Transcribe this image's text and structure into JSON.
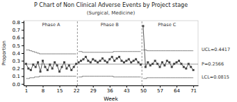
{
  "chart_data": {
    "type": "line",
    "title": "P Chart of Non Clinical Adverse Events by Project stage",
    "subtitle": "(Surgical, Medicine)",
    "xlabel": "Week",
    "ylabel": "Proportion",
    "xlim": [
      0,
      73
    ],
    "ylim": [
      -0.02,
      0.82
    ],
    "xticks": [
      1,
      8,
      15,
      22,
      29,
      36,
      43,
      50,
      57,
      64,
      71
    ],
    "yticks": [
      {
        "value": 0.0,
        "label": "0.0"
      },
      0.1,
      0.2,
      0.3,
      0.4,
      0.5,
      0.6,
      0.7,
      0.8
    ],
    "grid": false,
    "series": [
      {
        "type": "step",
        "color": "#666666",
        "line_style": "solid",
        "x": [
          1,
          2,
          3,
          4,
          5,
          6,
          7,
          8,
          9,
          10,
          11,
          12,
          13,
          14,
          15,
          16,
          17,
          18,
          19,
          20,
          21,
          22
        ],
        "values": [
          0.44,
          0.44,
          0.43,
          0.42,
          0.41,
          0.4,
          0.39,
          0.39,
          0.39,
          0.39,
          0.39,
          0.39,
          0.39,
          0.39,
          0.39,
          0.39,
          0.39,
          0.39,
          0.39,
          0.39,
          0.39,
          0.39
        ]
      },
      {
        "type": "step",
        "color": "#666666",
        "line_style": "solid",
        "x": [
          1,
          2,
          3,
          4,
          5,
          6,
          7,
          8,
          9,
          10,
          11,
          12,
          13,
          14,
          15,
          16,
          17,
          18,
          19,
          20,
          21,
          22
        ],
        "values": [
          0.07,
          0.07,
          0.08,
          0.08,
          0.09,
          0.09,
          0.1,
          0.1,
          0.1,
          0.1,
          0.1,
          0.1,
          0.1,
          0.1,
          0.1,
          0.1,
          0.1,
          0.1,
          0.1,
          0.1,
          0.1,
          0.1
        ]
      },
      {
        "type": "step",
        "color": "#666666",
        "line_style": "solid",
        "x": [
          23,
          24,
          25,
          26,
          27,
          28,
          29,
          30,
          31,
          32,
          33,
          34,
          35,
          36,
          37,
          38,
          39,
          40,
          41,
          42,
          43,
          44,
          45,
          46,
          47,
          48,
          49
        ],
        "values": [
          0.42,
          0.42,
          0.41,
          0.41,
          0.41,
          0.41,
          0.41,
          0.41,
          0.41,
          0.41,
          0.41,
          0.41,
          0.41,
          0.41,
          0.41,
          0.42,
          0.42,
          0.42,
          0.42,
          0.42,
          0.42,
          0.42,
          0.42,
          0.42,
          0.42,
          0.42,
          0.42
        ]
      },
      {
        "type": "step",
        "color": "#666666",
        "line_style": "solid",
        "x": [
          23,
          24,
          25,
          26,
          27,
          28,
          29,
          30,
          31,
          32,
          33,
          34,
          35,
          36,
          37,
          38,
          39,
          40,
          41,
          42,
          43,
          44,
          45,
          46,
          47,
          48,
          49
        ],
        "values": [
          0.09,
          0.09,
          0.1,
          0.1,
          0.1,
          0.1,
          0.1,
          0.1,
          0.1,
          0.1,
          0.1,
          0.1,
          0.1,
          0.1,
          0.1,
          0.09,
          0.09,
          0.09,
          0.09,
          0.09,
          0.09,
          0.09,
          0.09,
          0.09,
          0.09,
          0.09,
          0.09
        ]
      },
      {
        "type": "step",
        "color": "#666666",
        "line_style": "solid",
        "x": [
          50,
          51,
          52,
          53,
          54,
          55,
          56,
          57,
          58,
          59,
          60,
          61,
          62,
          63,
          64,
          65,
          66,
          67,
          68,
          69,
          70,
          71
        ],
        "values": [
          0.44,
          0.44,
          0.43,
          0.43,
          0.43,
          0.43,
          0.43,
          0.43,
          0.43,
          0.43,
          0.43,
          0.43,
          0.43,
          0.43,
          0.43,
          0.43,
          0.43,
          0.43,
          0.43,
          0.43,
          0.43,
          0.43
        ]
      },
      {
        "type": "step",
        "color": "#666666",
        "line_style": "solid",
        "x": [
          50,
          51,
          52,
          53,
          54,
          55,
          56,
          57,
          58,
          59,
          60,
          61,
          62,
          63,
          64,
          65,
          66,
          67,
          68,
          69,
          70,
          71
        ],
        "values": [
          0.07,
          0.07,
          0.08,
          0.08,
          0.08,
          0.08,
          0.08,
          0.08,
          0.08,
          0.08,
          0.08,
          0.08,
          0.08,
          0.08,
          0.08,
          0.08,
          0.08,
          0.08,
          0.08,
          0.08,
          0.08,
          0.08
        ]
      },
      {
        "type": "line",
        "color": "#444444",
        "marker": "square",
        "line_style": "solid",
        "x": [
          1,
          2,
          3,
          4,
          5,
          6,
          7,
          8,
          9,
          10,
          11,
          12,
          13,
          14,
          15,
          16,
          17,
          18,
          19,
          20,
          21,
          22
        ],
        "values": [
          0.26,
          0.2,
          0.18,
          0.25,
          0.22,
          0.28,
          0.16,
          0.3,
          0.22,
          0.18,
          0.25,
          0.2,
          0.28,
          0.24,
          0.16,
          0.22,
          0.28,
          0.2,
          0.24,
          0.18,
          0.22,
          0.26
        ]
      },
      {
        "type": "line",
        "color": "#444444",
        "marker": "square",
        "line_style": "solid",
        "x": [
          23,
          24,
          25,
          26,
          27,
          28,
          29,
          30,
          31,
          32,
          33,
          34,
          35,
          36,
          37,
          38,
          39,
          40,
          41,
          42,
          43,
          44,
          45,
          46,
          47,
          48,
          49
        ],
        "values": [
          0.28,
          0.3,
          0.32,
          0.35,
          0.3,
          0.28,
          0.32,
          0.3,
          0.28,
          0.3,
          0.33,
          0.3,
          0.28,
          0.32,
          0.35,
          0.3,
          0.33,
          0.35,
          0.3,
          0.28,
          0.3,
          0.32,
          0.28,
          0.3,
          0.32,
          0.28,
          0.25
        ]
      },
      {
        "type": "line",
        "color": "#444444",
        "marker": "square",
        "line_style": "solid",
        "x": [
          50,
          51,
          52,
          53,
          54,
          55,
          56,
          57,
          58,
          59,
          60,
          61,
          62,
          63,
          64,
          65,
          66,
          67,
          68,
          69,
          70,
          71
        ],
        "values": [
          0.75,
          0.22,
          0.28,
          0.24,
          0.26,
          0.3,
          0.26,
          0.22,
          0.28,
          0.24,
          0.3,
          0.28,
          0.22,
          0.26,
          0.28,
          0.3,
          0.26,
          0.22,
          0.2,
          0.26,
          0.22,
          0.18
        ]
      }
    ],
    "hlines": [
      {
        "y": 0.2566,
        "color": "#444444",
        "line_style": "solid"
      }
    ],
    "vlines": [
      {
        "x": 22.5,
        "color": "#888888",
        "line_style": "dashed"
      },
      {
        "x": 49.5,
        "color": "#888888",
        "line_style": "dashed"
      }
    ],
    "annotations": [
      {
        "text": "Phase A",
        "x": 11.5
      },
      {
        "text": "Phase B",
        "x": 36
      },
      {
        "text": "Phase C",
        "x": 60
      },
      {
        "text": "UCL=0.4417",
        "y": 0.4417
      },
      {
        "text": "P=0.2566",
        "y": 0.2566
      },
      {
        "text": "LCL=0.0815",
        "y": 0.0815
      }
    ]
  }
}
